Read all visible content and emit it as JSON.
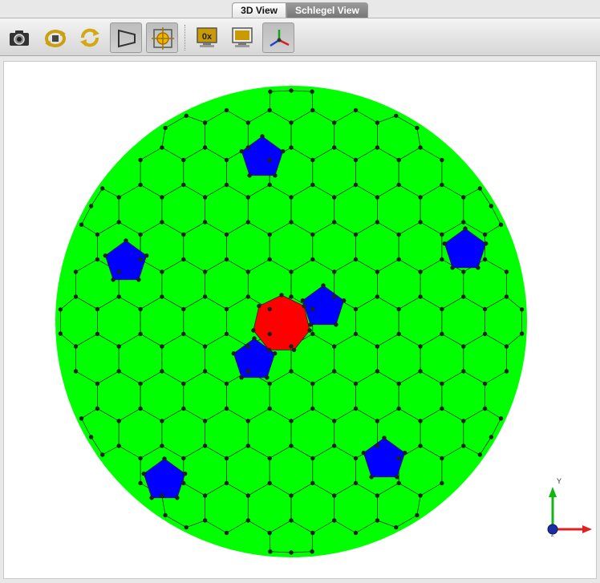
{
  "tabs": [
    {
      "label": "3D View",
      "selected": false
    },
    {
      "label": "Schlegel View",
      "selected": true
    }
  ],
  "toolbar": {
    "buttons": [
      {
        "name": "camera-button",
        "icon": "camera-icon"
      },
      {
        "name": "rotate-button",
        "icon": "rotate-icon"
      },
      {
        "name": "refresh-button",
        "icon": "refresh-icon"
      },
      {
        "name": "perspective-button",
        "icon": "perspective-icon",
        "active": true
      },
      {
        "name": "center-button",
        "icon": "crosshair-icon",
        "active": true
      },
      {
        "name": "hex-display-button",
        "icon": "monitor-0x-icon"
      },
      {
        "name": "display-settings-button",
        "icon": "monitor-icon"
      },
      {
        "name": "axes-button",
        "icon": "axes-icon",
        "active": true
      }
    ],
    "hex_label": "0x"
  },
  "axes": {
    "y_label": "Y",
    "x_label": "",
    "z_label": "Z"
  },
  "colors": {
    "hexagon": "#00ff00",
    "pentagon": "#0000ff",
    "center_face": "#ff0000",
    "vertex": "#202020",
    "edge": "#1a1a1a"
  }
}
